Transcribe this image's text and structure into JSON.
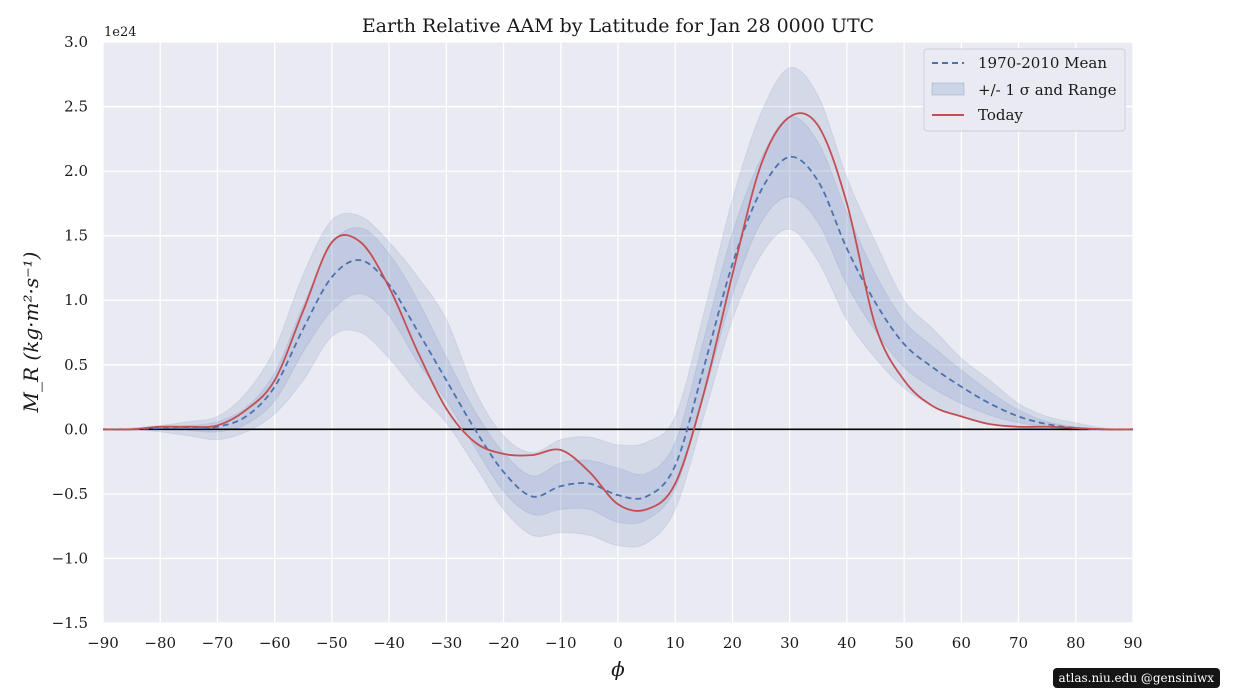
{
  "chart_data": {
    "type": "line",
    "title": "Earth Relative AAM by Latitude for Jan 28 0000 UTC",
    "xlabel": "ϕ",
    "ylabel": "M_R (kg·m²·s⁻¹)",
    "y_offset_label": "1e24",
    "xlim": [
      -90,
      90
    ],
    "ylim": [
      -1.5,
      3.0
    ],
    "x_ticks": [
      -90,
      -80,
      -70,
      -60,
      -50,
      -40,
      -30,
      -20,
      -10,
      0,
      10,
      20,
      30,
      40,
      50,
      60,
      70,
      80,
      90
    ],
    "x_tick_labels": [
      "−90",
      "−80",
      "−70",
      "−60",
      "−50",
      "−40",
      "−30",
      "−20",
      "−10",
      "0",
      "10",
      "20",
      "30",
      "40",
      "50",
      "60",
      "70",
      "80",
      "90"
    ],
    "y_ticks": [
      -1.5,
      -1.0,
      -0.5,
      0.0,
      0.5,
      1.0,
      1.5,
      2.0,
      2.5,
      3.0
    ],
    "y_tick_labels": [
      "−1.5",
      "−1.0",
      "−0.5",
      "0.0",
      "0.5",
      "1.0",
      "1.5",
      "2.0",
      "2.5",
      "3.0"
    ],
    "grid": true,
    "legend_position": "top-right",
    "colors": {
      "mean": "#4c72b0",
      "today": "#c44e52",
      "band": "#4c72b0",
      "background": "#eaeaf2",
      "zero_line": "#000000"
    },
    "x": [
      -90,
      -85,
      -80,
      -75,
      -70,
      -65,
      -60,
      -55,
      -50,
      -45,
      -40,
      -35,
      -30,
      -25,
      -20,
      -15,
      -10,
      -5,
      0,
      5,
      10,
      15,
      20,
      25,
      30,
      35,
      40,
      45,
      50,
      55,
      60,
      65,
      70,
      75,
      80,
      85,
      90
    ],
    "series": [
      {
        "name": "1970-2010 Mean",
        "style": "dashed",
        "values": [
          0.0,
          0.0,
          0.01,
          0.01,
          0.02,
          0.1,
          0.33,
          0.78,
          1.18,
          1.31,
          1.12,
          0.76,
          0.38,
          0.0,
          -0.33,
          -0.52,
          -0.44,
          -0.42,
          -0.51,
          -0.52,
          -0.28,
          0.48,
          1.28,
          1.85,
          2.11,
          1.92,
          1.4,
          0.98,
          0.66,
          0.48,
          0.33,
          0.2,
          0.1,
          0.04,
          0.01,
          0.0,
          0.0
        ]
      },
      {
        "name": "Today",
        "style": "solid",
        "values": [
          0.0,
          0.0,
          0.02,
          0.02,
          0.03,
          0.15,
          0.38,
          0.92,
          1.45,
          1.45,
          1.1,
          0.6,
          0.16,
          -0.1,
          -0.19,
          -0.2,
          -0.16,
          -0.33,
          -0.58,
          -0.62,
          -0.42,
          0.28,
          1.2,
          2.05,
          2.42,
          2.35,
          1.75,
          0.8,
          0.38,
          0.18,
          0.1,
          0.04,
          0.02,
          0.02,
          0.01,
          0.0,
          0.0
        ]
      }
    ],
    "bands": [
      {
        "name": "+/- 1 σ and Range",
        "lower": [
          0.0,
          0.0,
          -0.02,
          -0.05,
          -0.08,
          -0.02,
          0.12,
          0.38,
          0.72,
          0.75,
          0.55,
          0.28,
          0.05,
          -0.28,
          -0.62,
          -0.82,
          -0.8,
          -0.82,
          -0.9,
          -0.88,
          -0.62,
          0.1,
          0.85,
          1.35,
          1.55,
          1.3,
          0.85,
          0.55,
          0.32,
          0.18,
          0.1,
          0.04,
          0.01,
          0.0,
          -0.01,
          0.0,
          0.0
        ],
        "upper": [
          0.0,
          0.01,
          0.03,
          0.06,
          0.1,
          0.28,
          0.62,
          1.2,
          1.62,
          1.65,
          1.45,
          1.18,
          0.85,
          0.3,
          -0.05,
          -0.18,
          -0.08,
          -0.06,
          -0.12,
          -0.1,
          0.1,
          0.9,
          1.78,
          2.45,
          2.8,
          2.58,
          1.95,
          1.45,
          1.0,
          0.78,
          0.55,
          0.38,
          0.2,
          0.1,
          0.05,
          0.01,
          0.0
        ]
      },
      {
        "name": "+/- 1 σ",
        "lower": [
          0.0,
          0.0,
          0.0,
          -0.01,
          -0.02,
          0.04,
          0.22,
          0.6,
          0.92,
          1.05,
          0.88,
          0.52,
          0.22,
          -0.14,
          -0.48,
          -0.66,
          -0.62,
          -0.62,
          -0.72,
          -0.7,
          -0.46,
          0.26,
          1.04,
          1.6,
          1.8,
          1.6,
          1.12,
          0.76,
          0.48,
          0.32,
          0.2,
          0.11,
          0.05,
          0.02,
          0.0,
          0.0,
          0.0
        ],
        "upper": [
          0.0,
          0.0,
          0.02,
          0.03,
          0.06,
          0.17,
          0.44,
          0.96,
          1.44,
          1.56,
          1.36,
          1.0,
          0.56,
          0.14,
          -0.18,
          -0.36,
          -0.26,
          -0.24,
          -0.3,
          -0.34,
          -0.1,
          0.7,
          1.52,
          2.1,
          2.42,
          2.22,
          1.68,
          1.2,
          0.84,
          0.64,
          0.46,
          0.29,
          0.15,
          0.06,
          0.02,
          0.0,
          0.0
        ]
      }
    ]
  },
  "legend": {
    "mean_label": "1970-2010 Mean",
    "band_label": "+/- 1 σ and Range",
    "today_label": "Today"
  },
  "credit": "atlas.niu.edu  @gensiniwx"
}
